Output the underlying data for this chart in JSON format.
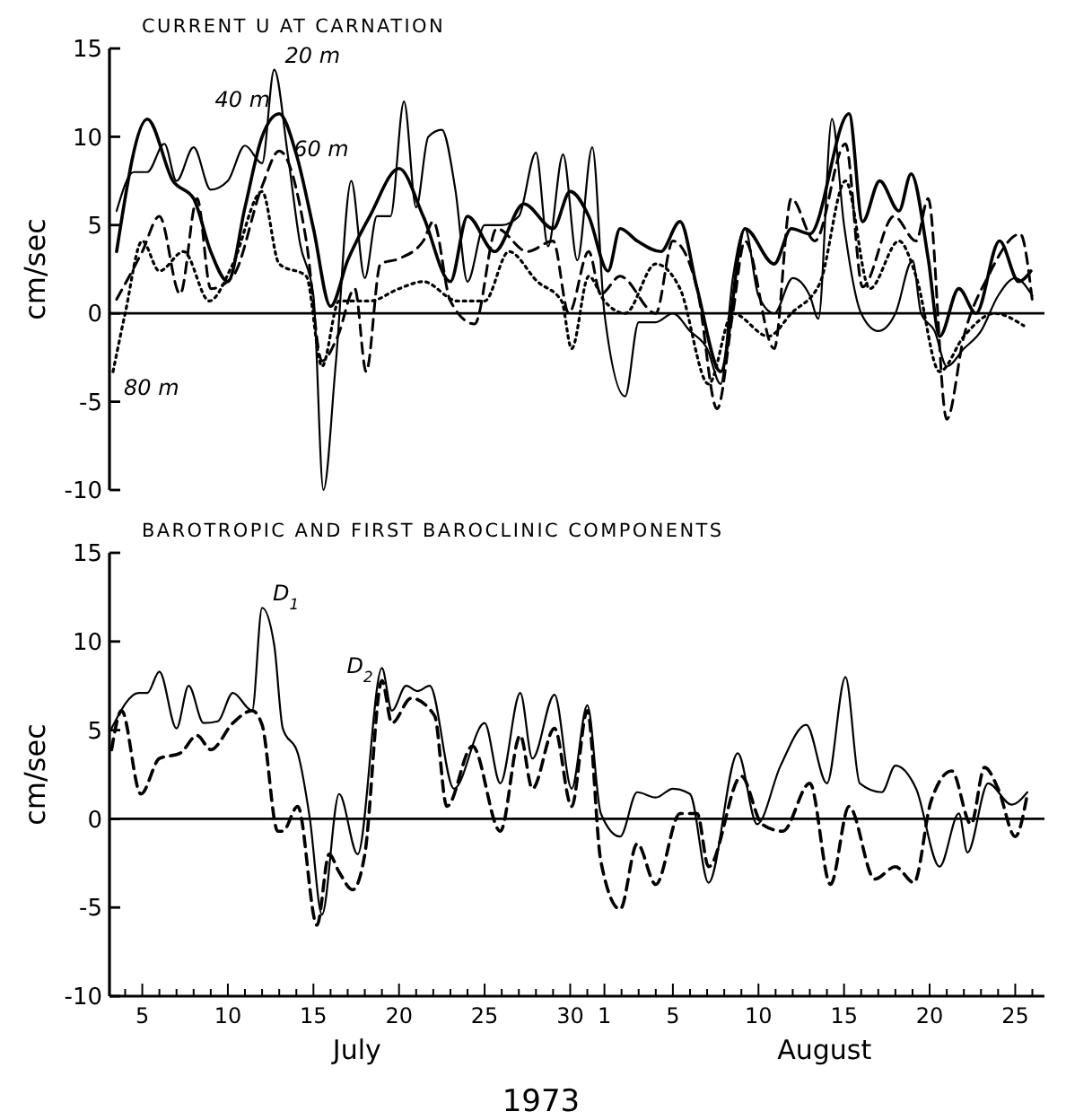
{
  "chart_data": [
    {
      "type": "line",
      "title": "CURRENT U AT CARNATION",
      "ylabel": "cm/sec",
      "xlim": [
        "1973-07-03T02:00",
        "1973-08-26T17:00"
      ],
      "ylim": [
        -10,
        15
      ],
      "yticks": [
        -10,
        -5,
        0,
        5,
        10,
        15
      ],
      "tick_labels": "y",
      "grid": false,
      "ref_lines": [
        {
          "axis": "y",
          "value": 0,
          "color": "#000000"
        }
      ],
      "series": [
        {
          "name": "20 m",
          "color": "#000000",
          "line_style": "solid",
          "x": [
            "1973-07-03T12:00",
            "1973-07-04T12:00",
            "1973-07-05T07:00",
            "1973-07-06T07:00",
            "1973-07-07",
            "1973-07-08",
            "1973-07-09",
            "1973-07-10",
            "1973-07-11",
            "1973-07-12",
            "1973-07-12T17:00",
            "1973-07-13T12:00",
            "1973-07-14T05:00",
            "1973-07-15",
            "1973-07-15T14:00",
            "1973-07-16T07:00",
            "1973-07-17T05:00",
            "1973-07-18",
            "1973-07-18T17:00",
            "1973-07-19T12:00",
            "1973-07-20T07:00",
            "1973-07-21",
            "1973-07-21T17:00",
            "1973-07-22T12:00",
            "1973-07-23T07:00",
            "1973-07-24",
            "1973-07-25",
            "1973-07-26",
            "1973-07-27",
            "1973-07-28",
            "1973-07-28T17:00",
            "1973-07-29T14:00",
            "1973-07-30T10:00",
            "1973-07-31T07:00",
            "1973-08-01",
            "1973-08-02T05:00",
            "1973-08-03",
            "1973-08-04",
            "1973-08-05",
            "1973-08-06",
            "1973-08-07",
            "1973-08-07T19:00",
            "1973-08-08T12:00",
            "1973-08-09T05:00",
            "1973-08-10",
            "1973-08-10T22:00",
            "1973-08-12",
            "1973-08-13",
            "1973-08-13T12:00",
            "1973-08-14T07:00",
            "1973-08-15",
            "1973-08-16",
            "1973-08-17",
            "1973-08-18",
            "1973-08-19",
            "1973-08-19T12:00",
            "1973-08-20T07:00",
            "1973-08-21",
            "1973-08-22",
            "1973-08-23",
            "1973-08-24",
            "1973-08-25",
            "1973-08-26"
          ],
          "values": [
            5.8,
            8,
            8,
            9.6,
            7.5,
            9.4,
            7,
            7.5,
            9.5,
            8.5,
            13.8,
            9,
            4,
            1,
            -10,
            -3,
            7.5,
            2,
            5.5,
            5.5,
            12,
            6,
            10,
            10.4,
            7,
            1.8,
            5,
            5,
            5.5,
            9.1,
            3.8,
            9,
            3,
            9.4,
            0,
            -4.7,
            -0.5,
            -0.5,
            0,
            -1,
            -2,
            -4,
            2,
            4.8,
            1,
            0,
            2,
            1,
            -0.3,
            11,
            5,
            0,
            -1,
            0,
            3,
            0,
            -1,
            -3,
            -2,
            -1,
            1,
            2,
            1
          ]
        },
        {
          "name": "40 m",
          "color": "#000000",
          "line_style": "solid",
          "x": [
            "1973-07-03T12:00",
            "1973-07-05T07:00",
            "1973-07-06T19:00",
            "1973-07-08",
            "1973-07-09",
            "1973-07-10",
            "1973-07-11",
            "1973-07-12",
            "1973-07-13",
            "1973-07-14",
            "1973-07-15",
            "1973-07-16",
            "1973-07-17",
            "1973-07-18T07:00",
            "1973-07-20",
            "1973-07-21T10:00",
            "1973-07-23",
            "1973-07-24",
            "1973-07-25T14:00",
            "1973-07-27T07:00",
            "1973-07-29",
            "1973-07-30",
            "1973-07-31T02:00",
            "1973-08-01T05:00",
            "1973-08-01T22:00",
            "1973-08-02T22:00",
            "1973-08-04T07:00",
            "1973-08-05T10:00",
            "1973-08-06T10:00",
            "1973-08-07T19:00",
            "1973-08-09T05:00",
            "1973-08-10T22:00",
            "1973-08-11T22:00",
            "1973-08-13",
            "1973-08-15T07:00",
            "1973-08-16T02:00",
            "1973-08-17T02:00",
            "1973-08-18T05:00",
            "1973-08-18T22:00",
            "1973-08-19T22:00",
            "1973-08-20T14:00",
            "1973-08-21T17:00",
            "1973-08-22T17:00",
            "1973-08-24T02:00",
            "1973-08-25T05:00",
            "1973-08-25T22:00"
          ],
          "values": [
            3.5,
            11,
            7.5,
            6.5,
            3.5,
            1.8,
            6,
            10,
            11.3,
            9,
            4.8,
            0.4,
            3,
            5.5,
            8.2,
            5.5,
            1.8,
            5.5,
            3.5,
            6.2,
            4.8,
            6.9,
            5.5,
            2.4,
            4.8,
            4.1,
            3.5,
            5.2,
            1.4,
            -3.3,
            4.8,
            2.8,
            4.8,
            4.5,
            11.3,
            5.2,
            7.5,
            5.8,
            7.9,
            3.1,
            -1.3,
            1.4,
            0,
            4.1,
            1.8,
            2.4
          ]
        },
        {
          "name": "60 m",
          "color": "#000000",
          "line_style": "dashed",
          "x": [
            "1973-07-03T12:00",
            "1973-07-05",
            "1973-07-06",
            "1973-07-07T05:00",
            "1973-07-08T05:00",
            "1973-07-09",
            "1973-07-10T07:00",
            "1973-07-12",
            "1973-07-13",
            "1973-07-14T14:00",
            "1973-07-15T12:00",
            "1973-07-16T10:00",
            "1973-07-17T10:00",
            "1973-07-18T02:00",
            "1973-07-18T22:00",
            "1973-07-20",
            "1973-07-21T10:00",
            "1973-07-22",
            "1973-07-23",
            "1973-07-24T10:00",
            "1973-07-25T17:00",
            "1973-07-27T12:00",
            "1973-07-29",
            "1973-07-29T22:00",
            "1973-07-31T02:00",
            "1973-07-31T19:00",
            "1973-08-01T22:00",
            "1973-08-04",
            "1973-08-05",
            "1973-08-06T10:00",
            "1973-08-07T14:00",
            "1973-08-08T12:00",
            "1973-08-09T05:00",
            "1973-08-10T22:00",
            "1973-08-11T22:00",
            "1973-08-13T07:00",
            "1973-08-15T02:00",
            "1973-08-16T02:00",
            "1973-08-17T22:00",
            "1973-08-19T05:00",
            "1973-08-19T22:00",
            "1973-08-21",
            "1973-08-22",
            "1973-08-23T10:00",
            "1973-08-25T07:00",
            "1973-08-26"
          ],
          "values": [
            0.8,
            3.5,
            5.5,
            1.1,
            6.5,
            1.4,
            2.1,
            7.2,
            9.2,
            4.1,
            -2.7,
            -1.3,
            1.4,
            -3.3,
            2.8,
            3.1,
            4.1,
            5.2,
            0.7,
            -0.6,
            4.8,
            3.5,
            4.1,
            0,
            3.5,
            1.1,
            2.1,
            0,
            4.1,
            1.4,
            -5.4,
            0,
            4.1,
            -2,
            6.5,
            4.1,
            9.6,
            1.5,
            5.5,
            4.1,
            6.5,
            -6,
            -1.3,
            2.1,
            4.5,
            0.7
          ]
        },
        {
          "name": "80 m",
          "color": "#000000",
          "line_style": "dotted",
          "x": [
            "1973-07-03T07:00",
            "1973-07-04",
            "1973-07-05",
            "1973-07-06",
            "1973-07-07T10:00",
            "1973-07-08T22:00",
            "1973-07-10T07:00",
            "1973-07-12",
            "1973-07-13",
            "1973-07-14T14:00",
            "1973-07-15T12:00",
            "1973-07-16T12:00",
            "1973-07-18T07:00",
            "1973-07-20",
            "1973-07-21T10:00",
            "1973-07-23T10:00",
            "1973-07-25",
            "1973-07-26T10:00",
            "1973-07-28T02:00",
            "1973-07-29T12:00",
            "1973-07-30T02:00",
            "1973-07-31T02:00",
            "1973-08-01",
            "1973-08-02T05:00",
            "1973-08-04",
            "1973-08-05T10:00",
            "1973-08-07T02:00",
            "1973-08-08T12:00",
            "1973-08-10T14:00",
            "1973-08-11T22:00",
            "1973-08-13T14:00",
            "1973-08-15T02:00",
            "1973-08-16T12:00",
            "1973-08-18T05:00",
            "1973-08-19T05:00",
            "1973-08-20T14:00",
            "1973-08-22",
            "1973-08-23T19:00",
            "1973-08-25T12:00"
          ],
          "values": [
            -3.3,
            0,
            4.1,
            2.4,
            3.5,
            0.7,
            2.8,
            6.9,
            2.8,
            2.1,
            -3,
            0.7,
            0.7,
            1.4,
            1.8,
            0.7,
            0.7,
            3.5,
            1.8,
            0.7,
            -2,
            2.1,
            0.7,
            0,
            2.8,
            1.4,
            -4,
            0,
            -1.3,
            0,
            1.7,
            7.5,
            1.4,
            4.1,
            2.1,
            -3.3,
            -1.3,
            0,
            -0.7
          ]
        }
      ]
    },
    {
      "type": "line",
      "title": "BAROTROPIC AND FIRST BAROCLINIC COMPONENTS",
      "ylabel": "cm/sec",
      "xlabel": "1973",
      "xlim": [
        "1973-07-03T02:00",
        "1973-08-26T17:00"
      ],
      "ylim": [
        -10,
        15
      ],
      "yticks": [
        -10,
        -5,
        0,
        5,
        10,
        15
      ],
      "grid": false,
      "xticks": [
        {
          "value": "1973-07-04",
          "label": null
        },
        {
          "value": "1973-07-05",
          "label": "5"
        },
        {
          "value": "1973-07-06",
          "label": null
        },
        {
          "value": "1973-07-07",
          "label": null
        },
        {
          "value": "1973-07-08",
          "label": null
        },
        {
          "value": "1973-07-09",
          "label": null
        },
        {
          "value": "1973-07-10",
          "label": "10"
        },
        {
          "value": "1973-07-11",
          "label": null
        },
        {
          "value": "1973-07-12",
          "label": null
        },
        {
          "value": "1973-07-13",
          "label": null
        },
        {
          "value": "1973-07-14",
          "label": null
        },
        {
          "value": "1973-07-15",
          "label": "15"
        },
        {
          "value": "1973-07-16",
          "label": null
        },
        {
          "value": "1973-07-17",
          "label": null
        },
        {
          "value": "1973-07-18",
          "label": null
        },
        {
          "value": "1973-07-19",
          "label": null
        },
        {
          "value": "1973-07-20",
          "label": "20"
        },
        {
          "value": "1973-07-21",
          "label": null
        },
        {
          "value": "1973-07-22",
          "label": null
        },
        {
          "value": "1973-07-23",
          "label": null
        },
        {
          "value": "1973-07-24",
          "label": null
        },
        {
          "value": "1973-07-25",
          "label": "25"
        },
        {
          "value": "1973-07-26",
          "label": null
        },
        {
          "value": "1973-07-27",
          "label": null
        },
        {
          "value": "1973-07-28",
          "label": null
        },
        {
          "value": "1973-07-29",
          "label": null
        },
        {
          "value": "1973-07-30",
          "label": "30"
        },
        {
          "value": "1973-07-31",
          "label": null
        },
        {
          "value": "1973-08-01",
          "label": "1"
        },
        {
          "value": "1973-08-02",
          "label": null
        },
        {
          "value": "1973-08-03",
          "label": null
        },
        {
          "value": "1973-08-04",
          "label": null
        },
        {
          "value": "1973-08-05",
          "label": "5"
        },
        {
          "value": "1973-08-06",
          "label": null
        },
        {
          "value": "1973-08-07",
          "label": null
        },
        {
          "value": "1973-08-08",
          "label": null
        },
        {
          "value": "1973-08-09",
          "label": null
        },
        {
          "value": "1973-08-10",
          "label": "10"
        },
        {
          "value": "1973-08-11",
          "label": null
        },
        {
          "value": "1973-08-12",
          "label": null
        },
        {
          "value": "1973-08-13",
          "label": null
        },
        {
          "value": "1973-08-14",
          "label": null
        },
        {
          "value": "1973-08-15",
          "label": "15"
        },
        {
          "value": "1973-08-16",
          "label": null
        },
        {
          "value": "1973-08-17",
          "label": null
        },
        {
          "value": "1973-08-18",
          "label": null
        },
        {
          "value": "1973-08-19",
          "label": null
        },
        {
          "value": "1973-08-20",
          "label": "20"
        },
        {
          "value": "1973-08-21",
          "label": null
        },
        {
          "value": "1973-08-22",
          "label": null
        },
        {
          "value": "1973-08-23",
          "label": null
        },
        {
          "value": "1973-08-24",
          "label": null
        },
        {
          "value": "1973-08-25",
          "label": "25"
        },
        {
          "value": "1973-08-26",
          "label": null
        }
      ],
      "annotations": [
        "July",
        "August"
      ],
      "ref_lines": [
        {
          "axis": "y",
          "value": 0,
          "color": "#000000"
        }
      ],
      "series": [
        {
          "name": "D$_{1}$",
          "color": "#000000",
          "line_style": "solid",
          "x": [
            "1973-07-03T05:00",
            "1973-07-04T19:00",
            "1973-07-05T07:00",
            "1973-07-06",
            "1973-07-07",
            "1973-07-07T17:00",
            "1973-07-08T14:00",
            "1973-07-09T10:00",
            "1973-07-10T07:00",
            "1973-07-11T10:00",
            "1973-07-12",
            "1973-07-12T17:00",
            "1973-07-13T05:00",
            "1973-07-14T02:00",
            "1973-07-14T19:00",
            "1973-07-15T12:00",
            "1973-07-16T12:00",
            "1973-07-17T14:00",
            "1973-07-19",
            "1973-07-19T14:00",
            "1973-07-20T10:00",
            "1973-07-21T02:00",
            "1973-07-21T19:00",
            "1973-07-23T05:00",
            "1973-07-25",
            "1973-07-25T22:00",
            "1973-07-27T02:00",
            "1973-07-27T19:00",
            "1973-07-29T02:00",
            "1973-07-30T02:00",
            "1973-07-31",
            "1973-07-31T19:00",
            "1973-08-01T22:00",
            "1973-08-02T22:00",
            "1973-08-04",
            "1973-08-05",
            "1973-08-06",
            "1973-08-07T02:00",
            "1973-08-08T19:00",
            "1973-08-09T22:00",
            "1973-08-11T07:00",
            "1973-08-12T19:00",
            "1973-08-14",
            "1973-08-15T02:00",
            "1973-08-15T22:00",
            "1973-08-17T05:00",
            "1973-08-18",
            "1973-08-19T05:00",
            "1973-08-20T14:00",
            "1973-08-21T17:00",
            "1973-08-22T05:00",
            "1973-08-23T10:00",
            "1973-08-24T19:00",
            "1973-08-25T17:00"
          ],
          "values": [
            5.1,
            7.1,
            7.1,
            8.3,
            5.1,
            7.5,
            5.4,
            5.5,
            7.1,
            6.1,
            11.9,
            9.8,
            5.1,
            3.7,
            0,
            -5.4,
            1.4,
            -2,
            8.5,
            6.1,
            7.5,
            7.2,
            7.5,
            1.7,
            5.4,
            2,
            7.1,
            3.4,
            7,
            1.7,
            6.4,
            0.3,
            -1,
            1.5,
            1.2,
            1.7,
            1.4,
            -3.6,
            3.7,
            -0.3,
            3,
            5.3,
            2,
            8,
            2,
            1.5,
            3,
            1.7,
            -2.7,
            0.3,
            -1.9,
            2,
            0.8,
            1.5
          ]
        },
        {
          "name": "D$_{2}$",
          "color": "#000000",
          "line_style": "dashed",
          "x": [
            "1973-07-03T05:00",
            "1973-07-03T19:00",
            "1973-07-04T22:00",
            "1973-07-06",
            "1973-07-07T05:00",
            "1973-07-08T05:00",
            "1973-07-09",
            "1973-07-10T07:00",
            "1973-07-11T10:00",
            "1973-07-12",
            "1973-07-12T22:00",
            "1973-07-13T05:00",
            "1973-07-14T02:00",
            "1973-07-15T05:00",
            "1973-07-15T22:00",
            "1973-07-16T12:00",
            "1973-07-17T07:00",
            "1973-07-18",
            "1973-07-19",
            "1973-07-19T14:00",
            "1973-07-20T17:00",
            "1973-07-22T02:00",
            "1973-07-22T19:00",
            "1973-07-24T07:00",
            "1973-07-25T22:00",
            "1973-07-27T02:00",
            "1973-07-27T19:00",
            "1973-07-29T02:00",
            "1973-07-30T02:00",
            "1973-07-31",
            "1973-07-31T19:00",
            "1973-08-01T22:00",
            "1973-08-02T22:00",
            "1973-08-04",
            "1973-08-05T10:00",
            "1973-08-06T10:00",
            "1973-08-07T02:00",
            "1973-08-09",
            "1973-08-10T05:00",
            "1973-08-11T10:00",
            "1973-08-13",
            "1973-08-14T05:00",
            "1973-08-15T07:00",
            "1973-08-16T19:00",
            "1973-08-18",
            "1973-08-19T02:00",
            "1973-08-20T02:00",
            "1973-08-21T07:00",
            "1973-08-22T10:00",
            "1973-08-23T05:00",
            "1973-08-24",
            "1973-08-25",
            "1973-08-25T17:00"
          ],
          "values": [
            3.9,
            6.1,
            1.4,
            3.4,
            3.7,
            4.7,
            3.9,
            5.4,
            6.1,
            5.3,
            -0.7,
            -0.7,
            0.7,
            -6,
            -2,
            -3,
            -4,
            -2,
            7.8,
            5.4,
            6.8,
            5.8,
            0.7,
            4.1,
            -0.7,
            4.7,
            1.7,
            5.1,
            0.7,
            6.1,
            -2.4,
            -5.1,
            -1.4,
            -3.7,
            0.3,
            0.3,
            -2.7,
            2.4,
            -0.3,
            -0.7,
            2,
            -3.7,
            0.7,
            -3.4,
            -2.7,
            -3.6,
            1,
            2.7,
            -0.3,
            2.9,
            1.7,
            -1,
            1.4
          ]
        }
      ]
    }
  ]
}
